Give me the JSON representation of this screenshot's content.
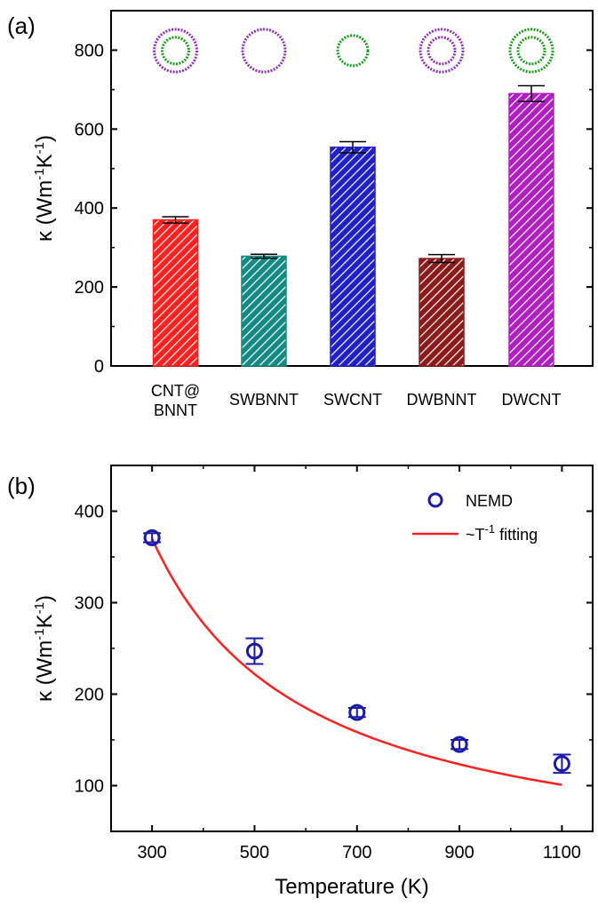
{
  "panel_a": {
    "label": "(a)"
  },
  "panel_b": {
    "label": "(b)"
  },
  "colors": {
    "bars": [
      "#ff2020",
      "#158a82",
      "#2020c8",
      "#8b1a1a",
      "#b020c0"
    ],
    "point": "#1a1aa8",
    "fit": "#ff2020",
    "ring_outer_bn": "#9030c0",
    "ring_c": "#18a018"
  },
  "chart_data": [
    {
      "type": "bar",
      "categories": [
        [
          "CNT@",
          "BNNT"
        ],
        [
          "SWBNNT"
        ],
        [
          "SWCNT"
        ],
        [
          "DWBNNT"
        ],
        [
          "DWCNT"
        ]
      ],
      "values": [
        370,
        278,
        554,
        272,
        690
      ],
      "errors": [
        8,
        5,
        14,
        10,
        20
      ],
      "ylim": [
        0,
        900
      ],
      "yticks": [
        0,
        200,
        400,
        600,
        800
      ],
      "ylabel_main": "κ (Wm",
      "ylabel_sup1": "-1",
      "ylabel_mid": "K",
      "ylabel_sup2": "-1",
      "ylabel_end": ")",
      "insets": [
        {
          "outer": "ring_outer_bn",
          "inner": "ring_c"
        },
        {
          "outer": "ring_outer_bn",
          "inner": null
        },
        {
          "outer": null,
          "inner": "ring_c"
        },
        {
          "outer": "ring_outer_bn",
          "inner": "ring_outer_bn"
        },
        {
          "outer": "ring_c",
          "inner": "ring_c"
        }
      ]
    },
    {
      "type": "scatter",
      "series": [
        {
          "name": "NEMD",
          "x": [
            300,
            500,
            700,
            900,
            1100
          ],
          "y": [
            371,
            247,
            180,
            145,
            124
          ],
          "errors": [
            5,
            14,
            5,
            5,
            10
          ]
        },
        {
          "name": "~T^-1 fitting",
          "fit_coefficient": 111000
        }
      ],
      "legend": {
        "entries": [
          "NEMD",
          "~T",
          "-1",
          " fitting"
        ]
      },
      "xlim": [
        220,
        1160
      ],
      "ylim": [
        50,
        450
      ],
      "xticks": [
        300,
        500,
        700,
        900,
        1100
      ],
      "yticks": [
        100,
        200,
        300,
        400
      ],
      "xlabel": "Temperature (K)",
      "ylabel_main": "κ (Wm",
      "ylabel_sup1": "-1",
      "ylabel_mid": "K",
      "ylabel_sup2": "-1",
      "ylabel_end": ")",
      "legend_position": "top-right"
    }
  ]
}
